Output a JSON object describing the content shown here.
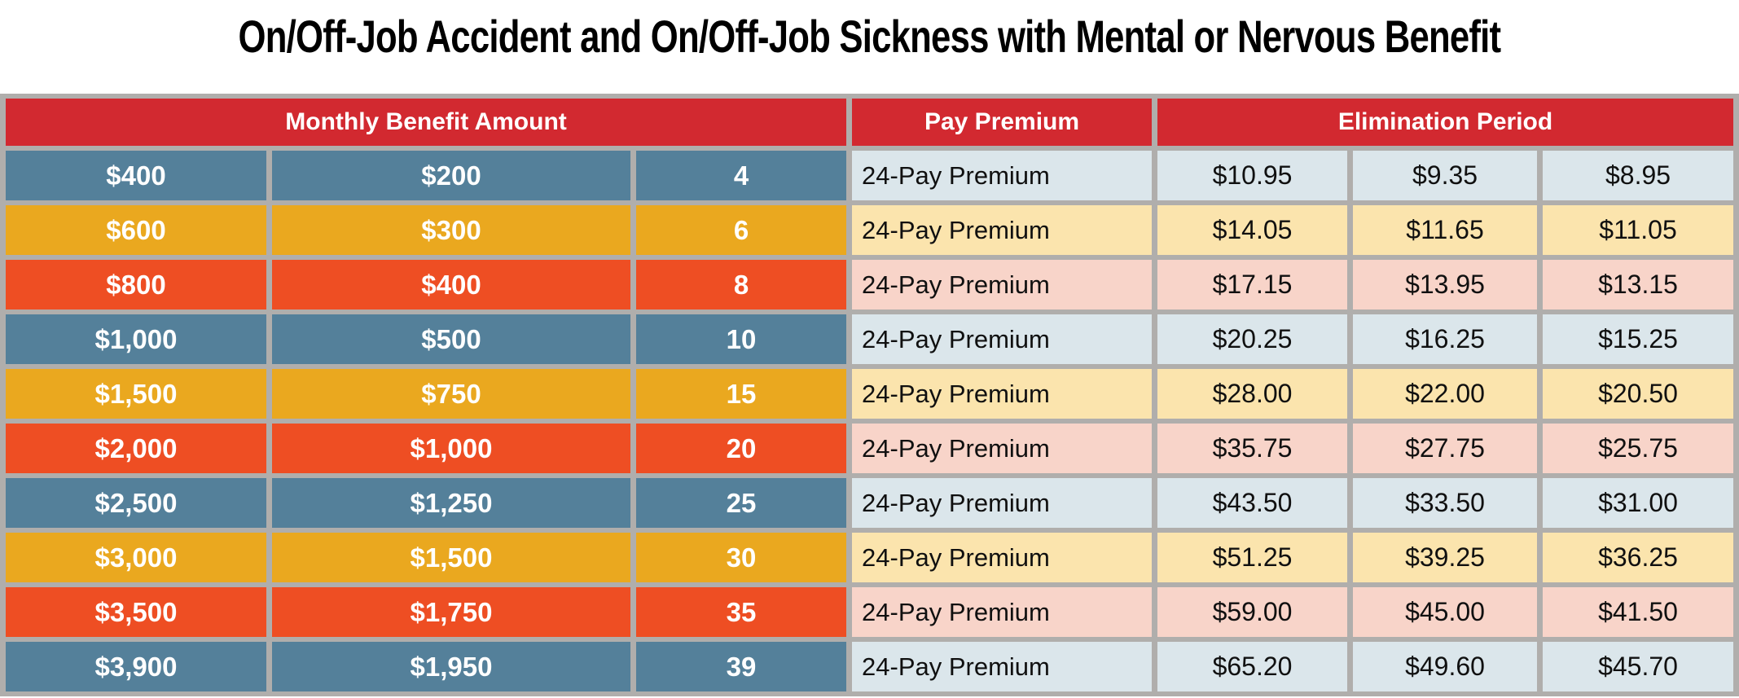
{
  "title": "On/Off-Job Accident and On/Off-Job Sickness with Mental or Nervous Benefit",
  "colors": {
    "red": "#d22930",
    "blue": "#54809a",
    "yellow": "#eaa81f",
    "orange": "#ee4e23",
    "light_blue": "#dbe6eb",
    "light_yellow": "#fbe4ad",
    "light_pink": "#f8d4c9",
    "frame_gray": "#b0aeac",
    "title_text": "#000000",
    "body_text": "#101010",
    "white_text": "#ffffff"
  },
  "table": {
    "headers": {
      "monthly_benefit": "Monthly Benefit Amount",
      "pay_premium": "Pay Premium",
      "elimination_period": "Elimination Period"
    },
    "rows": [
      {
        "tone": "blue",
        "benefit_amounts": [
          "$400",
          "$200",
          "4"
        ],
        "pay_label": "24-Pay Premium",
        "premiums": [
          "$10.95",
          "$9.35",
          "$8.95"
        ]
      },
      {
        "tone": "yellow",
        "benefit_amounts": [
          "$600",
          "$300",
          "6"
        ],
        "pay_label": "24-Pay Premium",
        "premiums": [
          "$14.05",
          "$11.65",
          "$11.05"
        ]
      },
      {
        "tone": "orange",
        "benefit_amounts": [
          "$800",
          "$400",
          "8"
        ],
        "pay_label": "24-Pay Premium",
        "premiums": [
          "$17.15",
          "$13.95",
          "$13.15"
        ]
      },
      {
        "tone": "blue",
        "benefit_amounts": [
          "$1,000",
          "$500",
          "10"
        ],
        "pay_label": "24-Pay Premium",
        "premiums": [
          "$20.25",
          "$16.25",
          "$15.25"
        ]
      },
      {
        "tone": "yellow",
        "benefit_amounts": [
          "$1,500",
          "$750",
          "15"
        ],
        "pay_label": "24-Pay Premium",
        "premiums": [
          "$28.00",
          "$22.00",
          "$20.50"
        ]
      },
      {
        "tone": "orange",
        "benefit_amounts": [
          "$2,000",
          "$1,000",
          "20"
        ],
        "pay_label": "24-Pay Premium",
        "premiums": [
          "$35.75",
          "$27.75",
          "$25.75"
        ]
      },
      {
        "tone": "blue",
        "benefit_amounts": [
          "$2,500",
          "$1,250",
          "25"
        ],
        "pay_label": "24-Pay Premium",
        "premiums": [
          "$43.50",
          "$33.50",
          "$31.00"
        ]
      },
      {
        "tone": "yellow",
        "benefit_amounts": [
          "$3,000",
          "$1,500",
          "30"
        ],
        "pay_label": "24-Pay Premium",
        "premiums": [
          "$51.25",
          "$39.25",
          "$36.25"
        ]
      },
      {
        "tone": "orange",
        "benefit_amounts": [
          "$3,500",
          "$1,750",
          "35"
        ],
        "pay_label": "24-Pay Premium",
        "premiums": [
          "$59.00",
          "$45.00",
          "$41.50"
        ]
      },
      {
        "tone": "blue",
        "benefit_amounts": [
          "$3,900",
          "$1,950",
          "39"
        ],
        "pay_label": "24-Pay Premium",
        "premiums": [
          "$65.20",
          "$49.60",
          "$45.70"
        ]
      }
    ]
  }
}
